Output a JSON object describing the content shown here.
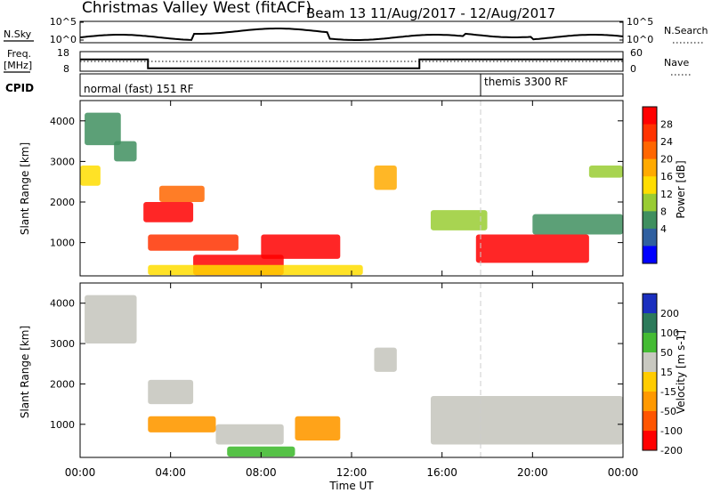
{
  "header": {
    "title_left": "Christmas Valley West (fitACF)",
    "title_right": "Beam 13 11/Aug/2017 - 12/Aug/2017"
  },
  "sky_panel": {
    "left_label": "N.Sky",
    "left_ticks": [
      "10^5",
      "10^0"
    ],
    "right_ticks": [
      "10^5",
      "10^0"
    ],
    "right_label": "N.Search"
  },
  "freq_panel": {
    "left_label_1": "Freq.",
    "left_label_2": "[MHz]",
    "left_ticks": [
      "18",
      "8"
    ],
    "right_ticks": [
      "60",
      "0"
    ],
    "right_label": "Nave"
  },
  "cpid_panel": {
    "label": "CPID",
    "mode_1": "normal (fast) 151 RF",
    "mode_2": "themis 3300 RF"
  },
  "power_panel": {
    "ylabel": "Slant Range [km]",
    "yticks": [
      "4000",
      "3000",
      "2000",
      "1000"
    ],
    "colorbar_label": "Power [dB]",
    "colorbar_ticks": [
      "28",
      "24",
      "20",
      "16",
      "12",
      "8",
      "4"
    ],
    "colorbar_colors": [
      "#ff0000",
      "#ff3300",
      "#ff6600",
      "#ffaa00",
      "#ffdd00",
      "#99cc33",
      "#3f8f5f",
      "#3060a0",
      "#0000ff"
    ]
  },
  "velocity_panel": {
    "ylabel": "Slant Range [km]",
    "yticks": [
      "4000",
      "3000",
      "2000",
      "1000"
    ],
    "colorbar_label": "Velocity [m s-1]",
    "colorbar_ticks": [
      "200",
      "100",
      "50",
      "15",
      "-15",
      "-50",
      "-100",
      "-200"
    ],
    "colorbar_colors": [
      "#1a2fbf",
      "#2c7a5a",
      "#44bb33",
      "#c8c8c0",
      "#ffcc00",
      "#ff9900",
      "#ff5500",
      "#ff0000"
    ]
  },
  "xaxis": {
    "ticks": [
      "00:00",
      "04:00",
      "08:00",
      "12:00",
      "16:00",
      "20:00",
      "00:00"
    ],
    "label": "Time UT"
  },
  "chart_data": {
    "type": "heatmap",
    "title": "Christmas Valley West (fitACF) Beam 13 11/Aug/2017 - 12/Aug/2017",
    "xlabel": "Time UT",
    "ylabel": "Slant Range [km]",
    "x_range_hours": [
      0,
      24
    ],
    "ylim": [
      180,
      4500
    ],
    "frequency_mhz": [
      {
        "start_hour": 0,
        "end_hour": 3,
        "value": 14
      },
      {
        "start_hour": 3,
        "end_hour": 15,
        "value": 9.5
      },
      {
        "start_hour": 15,
        "end_hour": 24,
        "value": 14
      }
    ],
    "cpid_segments": [
      {
        "start_hour": 0,
        "end_hour": 18,
        "label": "normal (fast) 151 RF"
      },
      {
        "start_hour": 18,
        "end_hour": 24,
        "label": "themis 3300 RF"
      }
    ],
    "power_regions": [
      {
        "t0": 0.2,
        "t1": 1.8,
        "r0": 3400,
        "r1": 4200,
        "power_db": 8
      },
      {
        "t0": 1.5,
        "t1": 2.5,
        "r0": 3000,
        "r1": 3500,
        "power_db": 8
      },
      {
        "t0": 0.0,
        "t1": 0.9,
        "r0": 2400,
        "r1": 2900,
        "power_db": 14
      },
      {
        "t0": 2.8,
        "t1": 5.0,
        "r0": 1500,
        "r1": 2000,
        "power_db": 28
      },
      {
        "t0": 3.5,
        "t1": 5.5,
        "r0": 2000,
        "r1": 2400,
        "power_db": 22
      },
      {
        "t0": 3.0,
        "t1": 7.0,
        "r0": 800,
        "r1": 1200,
        "power_db": 24
      },
      {
        "t0": 5.0,
        "t1": 9.0,
        "r0": 200,
        "r1": 700,
        "power_db": 28
      },
      {
        "t0": 8.0,
        "t1": 11.5,
        "r0": 600,
        "r1": 1200,
        "power_db": 28
      },
      {
        "t0": 3.0,
        "t1": 12.5,
        "r0": 200,
        "r1": 450,
        "power_db": 16
      },
      {
        "t0": 13.0,
        "t1": 14.0,
        "r0": 2300,
        "r1": 2900,
        "power_db": 18
      },
      {
        "t0": 15.5,
        "t1": 18.0,
        "r0": 1300,
        "r1": 1800,
        "power_db": 12
      },
      {
        "t0": 17.5,
        "t1": 22.5,
        "r0": 500,
        "r1": 1200,
        "power_db": 28
      },
      {
        "t0": 20.0,
        "t1": 24.0,
        "r0": 1200,
        "r1": 1700,
        "power_db": 10
      },
      {
        "t0": 22.5,
        "t1": 24.0,
        "r0": 2600,
        "r1": 2900,
        "power_db": 12
      }
    ],
    "velocity_regions": [
      {
        "t0": 0.2,
        "t1": 2.5,
        "r0": 3000,
        "r1": 4200,
        "velocity": 0
      },
      {
        "t0": 3.0,
        "t1": 5.0,
        "r0": 1500,
        "r1": 2100,
        "velocity": 0
      },
      {
        "t0": 3.0,
        "t1": 6.0,
        "r0": 800,
        "r1": 1200,
        "velocity": -50
      },
      {
        "t0": 6.0,
        "t1": 9.0,
        "r0": 500,
        "r1": 1000,
        "velocity": 0
      },
      {
        "t0": 6.5,
        "t1": 9.5,
        "r0": 200,
        "r1": 450,
        "velocity": 50
      },
      {
        "t0": 9.5,
        "t1": 11.5,
        "r0": 600,
        "r1": 1200,
        "velocity": -50
      },
      {
        "t0": 13.0,
        "t1": 14.0,
        "r0": 2300,
        "r1": 2900,
        "velocity": 0
      },
      {
        "t0": 15.5,
        "t1": 24.0,
        "r0": 500,
        "r1": 1700,
        "velocity": 0
      }
    ]
  }
}
